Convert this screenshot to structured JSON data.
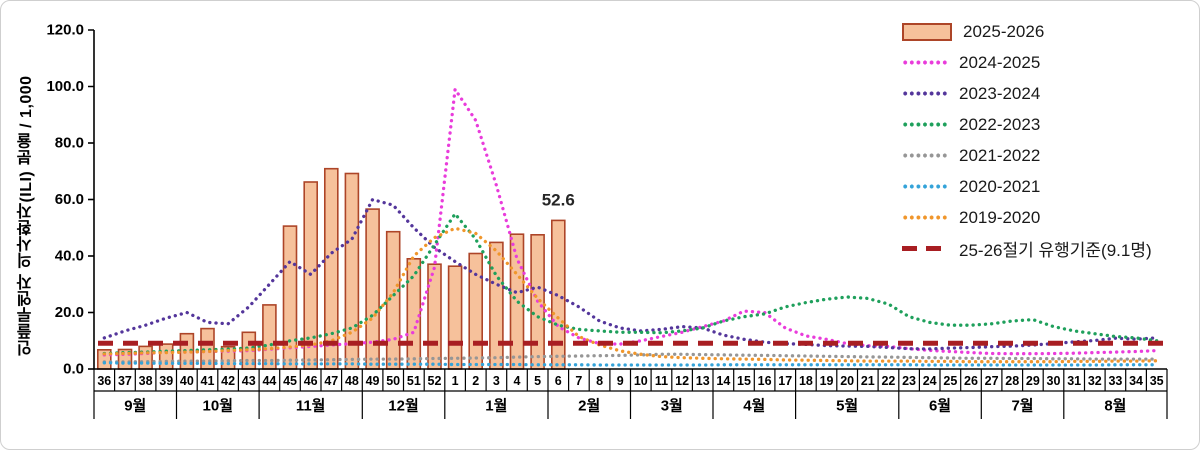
{
  "chart_data": {
    "type": "bar+line combo",
    "title": "",
    "ylabel": "인플루엔자 의사환자(ILI) 분율 / 1,000",
    "ylim": [
      0,
      120
    ],
    "ytick_step": 20,
    "ytick_labels": [
      "0.0",
      "20.0",
      "40.0",
      "60.0",
      "80.0",
      "100.0",
      "120.0"
    ],
    "grid": false,
    "legend_position": "top-right",
    "weeks": [
      "36",
      "37",
      "38",
      "39",
      "40",
      "41",
      "42",
      "43",
      "44",
      "45",
      "46",
      "47",
      "48",
      "49",
      "50",
      "51",
      "52",
      "1",
      "2",
      "3",
      "4",
      "5",
      "6",
      "7",
      "8",
      "9",
      "10",
      "11",
      "12",
      "13",
      "14",
      "15",
      "16",
      "17",
      "18",
      "19",
      "20",
      "21",
      "22",
      "23",
      "24",
      "25",
      "26",
      "27",
      "28",
      "29",
      "30",
      "31",
      "32",
      "33",
      "34",
      "35"
    ],
    "month_groups": [
      {
        "label": "9월",
        "weeks": 4
      },
      {
        "label": "10월",
        "weeks": 4
      },
      {
        "label": "11월",
        "weeks": 5
      },
      {
        "label": "12월",
        "weeks": 4
      },
      {
        "label": "1월",
        "weeks": 5
      },
      {
        "label": "2월",
        "weeks": 4
      },
      {
        "label": "3월",
        "weeks": 4
      },
      {
        "label": "4월",
        "weeks": 4
      },
      {
        "label": "5월",
        "weeks": 5
      },
      {
        "label": "6월",
        "weeks": 4
      },
      {
        "label": "7월",
        "weeks": 4
      },
      {
        "label": "8월",
        "weeks": 5
      }
    ],
    "bar_series": {
      "name": "2025-2026",
      "fill": "#F6C19B",
      "border": "#AD4528",
      "values": [
        6.8,
        6.9,
        8.0,
        8.8,
        12.5,
        14.3,
        7.9,
        13.0,
        22.7,
        50.6,
        66.2,
        70.9,
        69.2,
        56.6,
        48.6,
        39.0,
        37.1,
        36.4,
        40.9,
        44.8,
        47.7,
        47.5,
        52.6,
        null,
        null,
        null,
        null,
        null,
        null,
        null,
        null,
        null,
        null,
        null,
        null,
        null,
        null,
        null,
        null,
        null,
        null,
        null,
        null,
        null,
        null,
        null,
        null,
        null,
        null,
        null,
        null,
        null
      ]
    },
    "line_series": [
      {
        "name": "2024-2025",
        "color": "#E93CDB",
        "values": [
          5.0,
          5.2,
          5.5,
          6.0,
          6.0,
          6.2,
          6.3,
          6.5,
          7.0,
          7.5,
          8.0,
          8.5,
          9.0,
          9.5,
          10.5,
          13.0,
          36.0,
          99.0,
          88.0,
          65.0,
          39.0,
          24.0,
          15.0,
          11.0,
          9.0,
          8.8,
          10.0,
          11.5,
          13.0,
          15.0,
          17.0,
          20.5,
          20.0,
          14.5,
          11.7,
          10.5,
          9.0,
          8.2,
          8.0,
          7.2,
          6.6,
          6.2,
          5.8,
          5.5,
          5.4,
          5.4,
          5.5,
          5.6,
          5.8,
          6.0,
          6.2,
          6.5
        ]
      },
      {
        "name": "2023-2024",
        "color": "#54369B",
        "values": [
          11.0,
          13.5,
          15.5,
          18.0,
          20.0,
          16.5,
          16.0,
          22.0,
          30.0,
          38.0,
          33.5,
          41.0,
          46.0,
          60.0,
          58.0,
          50.0,
          43.0,
          38.0,
          33.5,
          30.0,
          27.0,
          29.0,
          26.0,
          22.0,
          17.0,
          14.5,
          13.5,
          14.0,
          15.0,
          14.5,
          12.0,
          10.5,
          9.5,
          9.0,
          8.7,
          8.3,
          8.1,
          8.0,
          7.6,
          7.2,
          7.1,
          7.4,
          7.6,
          7.9,
          8.1,
          8.5,
          9.0,
          9.6,
          10.1,
          10.9,
          10.6,
          11.0
        ]
      },
      {
        "name": "2022-2023",
        "color": "#1FA05C",
        "values": [
          5.5,
          5.8,
          6.0,
          6.3,
          6.5,
          6.8,
          7.0,
          7.4,
          8.5,
          10.0,
          11.0,
          12.5,
          14.5,
          19.0,
          26.0,
          33.0,
          44.0,
          54.9,
          46.0,
          33.0,
          24.0,
          18.5,
          15.5,
          14.0,
          13.5,
          13.0,
          13.0,
          12.8,
          13.5,
          14.5,
          17.0,
          18.5,
          19.5,
          22.0,
          23.5,
          24.7,
          25.5,
          25.0,
          23.0,
          18.5,
          16.5,
          15.5,
          15.5,
          16.0,
          17.0,
          17.5,
          15.0,
          13.5,
          12.5,
          11.5,
          11.0,
          10.0
        ]
      },
      {
        "name": "2021-2022",
        "color": "#969696",
        "values": [
          2.5,
          2.5,
          2.6,
          2.7,
          2.8,
          2.8,
          2.9,
          3.0,
          3.0,
          3.1,
          3.2,
          3.3,
          3.4,
          3.5,
          3.5,
          3.6,
          3.7,
          3.8,
          3.9,
          4.0,
          4.2,
          4.4,
          4.5,
          4.6,
          4.7,
          4.8,
          5.0,
          5.2,
          5.2,
          5.1,
          5.0,
          4.9,
          4.8,
          4.7,
          4.6,
          4.5,
          4.4,
          4.3,
          4.2,
          4.1,
          4.0,
          3.9,
          3.8,
          3.8,
          3.7,
          3.7,
          3.6,
          3.6,
          3.5,
          3.5,
          3.5,
          3.5
        ]
      },
      {
        "name": "2020-2021",
        "color": "#34A3D9",
        "values": [
          2.2,
          2.1,
          2.1,
          2.0,
          2.0,
          2.0,
          1.9,
          1.9,
          1.9,
          1.8,
          1.8,
          1.8,
          1.8,
          1.7,
          1.7,
          1.7,
          1.7,
          1.6,
          1.6,
          1.6,
          1.6,
          1.5,
          1.5,
          1.5,
          1.4,
          1.4,
          1.4,
          1.4,
          1.4,
          1.4,
          1.5,
          1.5,
          1.5,
          1.5,
          1.5,
          1.5,
          1.5,
          1.5,
          1.5,
          1.5,
          1.4,
          1.4,
          1.4,
          1.4,
          1.4,
          1.4,
          1.4,
          1.4,
          1.4,
          1.5,
          1.5,
          1.5
        ]
      },
      {
        "name": "2019-2020",
        "color": "#F0962B",
        "values": [
          5.3,
          5.5,
          5.7,
          5.8,
          6.0,
          6.2,
          6.5,
          6.8,
          7.2,
          7.8,
          8.5,
          10.0,
          13.0,
          18.0,
          27.0,
          40.0,
          46.5,
          49.8,
          48.0,
          41.8,
          33.5,
          25.0,
          18.0,
          11.5,
          8.5,
          6.4,
          5.2,
          4.4,
          4.0,
          3.8,
          3.6,
          3.5,
          3.4,
          3.2,
          3.1,
          3.0,
          2.9,
          2.8,
          2.8,
          2.8,
          2.7,
          2.7,
          2.6,
          2.6,
          2.6,
          2.6,
          2.6,
          2.7,
          2.7,
          2.8,
          2.8,
          2.9
        ]
      }
    ],
    "threshold": {
      "label": "25-26절기 유행기준(9.1명)",
      "value": 9.1,
      "color": "#A81E22"
    },
    "annotation": {
      "week_index": 22,
      "text": "52.6"
    }
  }
}
